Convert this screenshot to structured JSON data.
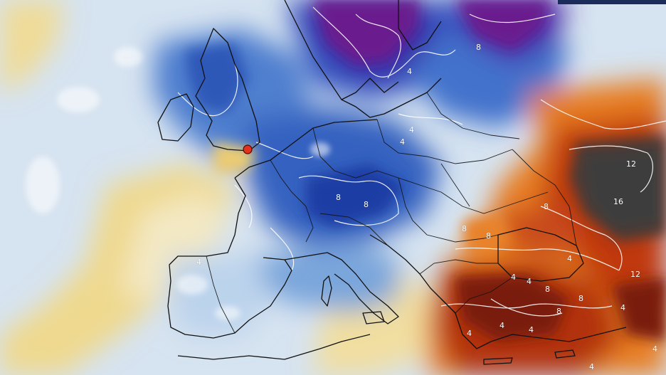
{
  "map": {
    "region": "Europe",
    "variable": "temperature anomaly",
    "palette": {
      "deep_cold": "#5a0f7a",
      "cold": "#1d3fa8",
      "cool": "#5f8fd6",
      "neutral_light": "#d3e3f2",
      "neutral_warm": "#f3e8b8",
      "mild_warm": "#e9c469",
      "warm": "#e8761b",
      "hot": "#b8320f",
      "very_hot": "#6b1208",
      "extreme": "#3b3b3b",
      "border_color": "#111111",
      "contour_color": "#ffffff",
      "marker_color": "#e2311d"
    },
    "contour_labels": [
      {
        "id": "c-n8",
        "text": "8"
      },
      {
        "id": "c-n4a",
        "text": "4"
      },
      {
        "id": "c-n4b",
        "text": "4"
      },
      {
        "id": "c-4a",
        "text": "4"
      },
      {
        "id": "c-4b",
        "text": "4"
      },
      {
        "id": "c-8a",
        "text": "8"
      },
      {
        "id": "c-8b",
        "text": "8"
      },
      {
        "id": "c-12a",
        "text": "12"
      },
      {
        "id": "c-16",
        "text": "16"
      },
      {
        "id": "c-8c",
        "text": "8"
      },
      {
        "id": "c-8d",
        "text": "8"
      },
      {
        "id": "c-4c",
        "text": "4"
      },
      {
        "id": "c-4d",
        "text": "4"
      },
      {
        "id": "c-8e",
        "text": "8"
      },
      {
        "id": "c-12b",
        "text": "12"
      },
      {
        "id": "c-8f",
        "text": "8"
      },
      {
        "id": "c-8g",
        "text": "8"
      },
      {
        "id": "c-4e",
        "text": "4"
      },
      {
        "id": "c-4f",
        "text": "4"
      },
      {
        "id": "c-4g",
        "text": "4"
      },
      {
        "id": "c-4h",
        "text": "4"
      },
      {
        "id": "c-4i",
        "text": "4"
      },
      {
        "id": "c-8h",
        "text": "8"
      },
      {
        "id": "c-4j",
        "text": "4"
      },
      {
        "id": "c-4k",
        "text": "4"
      }
    ],
    "marker": {
      "label": "location-marker"
    }
  }
}
